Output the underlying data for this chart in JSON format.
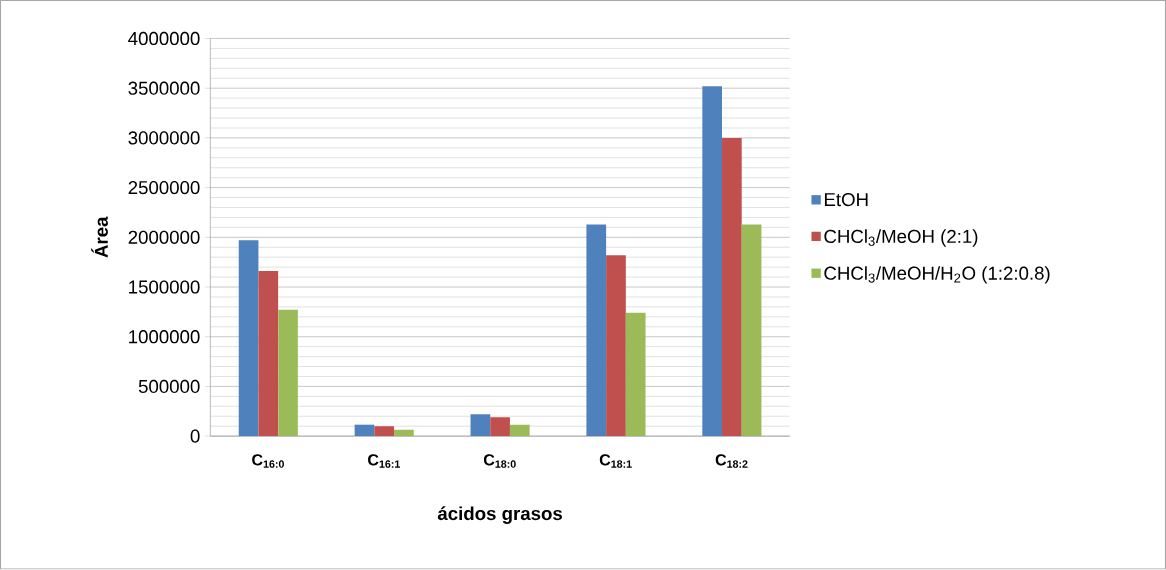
{
  "chart_data": {
    "type": "bar",
    "xlabel": "ácidos grasos",
    "ylabel": "Área",
    "categories": [
      "C$_{16:0}$",
      "C$_{16:1}$",
      "C$_{18:0}$",
      "C$_{18:1}$",
      "C$_{18:2}$"
    ],
    "series": [
      {
        "name": "EtOH",
        "color": "#4f81bd",
        "values": [
          1970000,
          115000,
          220000,
          2130000,
          3520000
        ]
      },
      {
        "name": "CHCl$_{3}$/MeOH (2:1)",
        "color": "#c0504d",
        "values": [
          1660000,
          100000,
          190000,
          1820000,
          3000000
        ]
      },
      {
        "name": "CHCl$_{3}$/MeOH/H$_{2}$O (1:2:0.8)",
        "color": "#9bbb59",
        "values": [
          1270000,
          65000,
          115000,
          1240000,
          2130000
        ]
      }
    ],
    "ylim": [
      0,
      4000000
    ],
    "yticks": [
      0,
      500000,
      1000000,
      1500000,
      2000000,
      2500000,
      3000000,
      3500000,
      4000000
    ],
    "grid": "y",
    "legend": "right"
  }
}
